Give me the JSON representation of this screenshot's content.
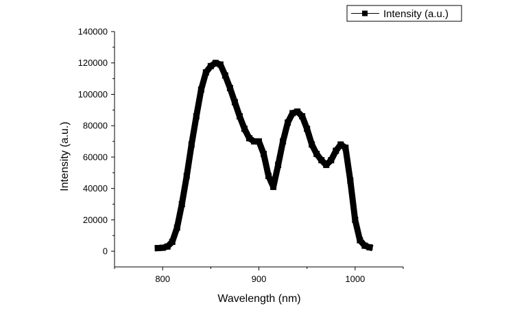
{
  "chart_data": {
    "type": "scatter",
    "xlabel": "Wavelength (nm)",
    "ylabel": "Intensity (a.u.)",
    "xlim": [
      750,
      1050
    ],
    "ylim": [
      -10000,
      140000
    ],
    "x_ticks": [
      800,
      900,
      1000
    ],
    "y_ticks": [
      0,
      20000,
      40000,
      60000,
      80000,
      100000,
      120000,
      140000
    ],
    "x_tick_labels": [
      "800",
      "900",
      "1000"
    ],
    "y_tick_labels": [
      "0",
      "20000",
      "40000",
      "60000",
      "80000",
      "100000",
      "120000",
      "140000"
    ],
    "grid": false,
    "legend_position": "top-right",
    "series": [
      {
        "name": "Intensity (a.u.)",
        "color": "#000000",
        "marker": "square",
        "x": [
          795,
          800,
          805,
          810,
          815,
          820,
          825,
          830,
          835,
          840,
          845,
          850,
          855,
          860,
          865,
          870,
          875,
          880,
          885,
          890,
          895,
          900,
          905,
          910,
          915,
          920,
          925,
          930,
          935,
          940,
          945,
          950,
          955,
          960,
          965,
          970,
          975,
          980,
          985,
          990,
          995,
          1000,
          1005,
          1010,
          1015
        ],
        "y": [
          2000,
          2200,
          3000,
          6000,
          15000,
          30000,
          48000,
          68000,
          86000,
          103000,
          114000,
          118000,
          120000,
          119000,
          112000,
          104000,
          95000,
          86000,
          78000,
          72000,
          70000,
          70000,
          62000,
          48000,
          41000,
          55000,
          70000,
          82000,
          88000,
          89000,
          86000,
          78000,
          68000,
          62000,
          58000,
          55000,
          58000,
          64000,
          68000,
          66000,
          45000,
          20000,
          7000,
          3500,
          2500
        ]
      }
    ]
  }
}
